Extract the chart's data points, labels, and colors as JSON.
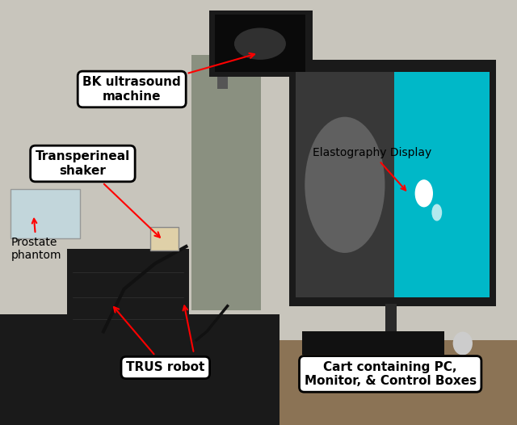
{
  "figure_width": 6.4,
  "figure_height": 5.26,
  "dpi": 100,
  "background_color": "#ffffff",
  "labels": {
    "bk": "BK ultrasound\nmachine",
    "shaker": "Transperineal\nshaker",
    "phantom": "Prostate\nphantom",
    "elasto": "Elastography Display",
    "trus": "TRUS robot",
    "cart": "Cart containing PC,\nMonitor, & Control Boxes"
  },
  "colors": {
    "arrow": "red",
    "bg": "#c8c5bc",
    "bk_body": "#8a9080",
    "bk_monitor_bg": "#1a1a1a",
    "bk_screen": "#0a0a0a",
    "table_dark": "#1a1a1a",
    "table_brown": "#8B7355",
    "elasto_outer": "#1a1a1a",
    "elasto_left": "#383838",
    "elasto_ellipse": "#707070",
    "elasto_right": "#00b8c8",
    "elasto_blob": "#ffffff",
    "phantom_face": "#c0dce6",
    "phantom_edge": "#888888",
    "trus_color": "#1a1a1a",
    "shaker_face": "#dfd0a8",
    "shaker_edge": "#888888",
    "keyboard": "#111111",
    "mouse": "#cccccc",
    "stand": "#2a2a2a"
  }
}
